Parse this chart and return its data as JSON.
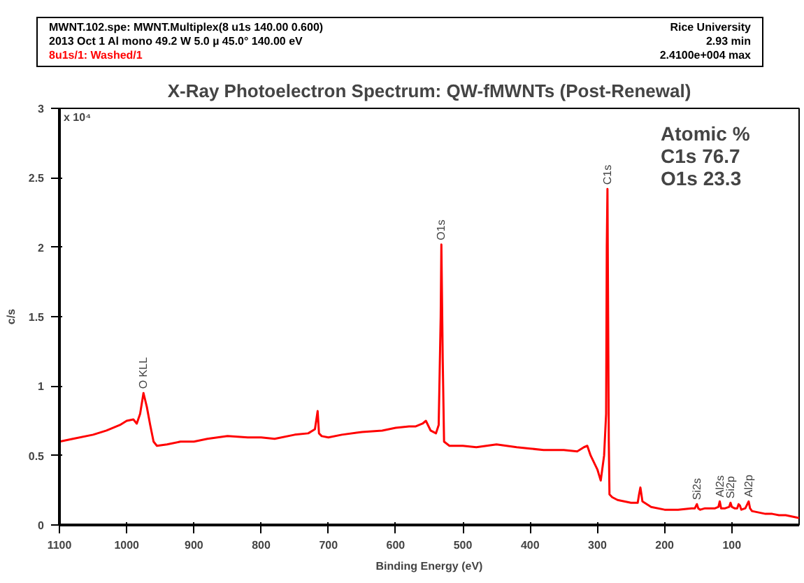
{
  "chart_data": {
    "type": "line",
    "title": "X-Ray Photoelectron Spectrum: QW-fMWNTs (Post-Renewal)",
    "xlabel": "Binding Energy (eV)",
    "ylabel": "c/s",
    "x": [
      1100,
      1080,
      1050,
      1030,
      1010,
      1000,
      990,
      985,
      980,
      975,
      970,
      965,
      960,
      955,
      940,
      920,
      900,
      880,
      850,
      820,
      800,
      780,
      750,
      730,
      720,
      716,
      714,
      710,
      700,
      680,
      650,
      620,
      600,
      580,
      570,
      560,
      555,
      548,
      540,
      536,
      533,
      532,
      530,
      528,
      520,
      500,
      480,
      450,
      420,
      400,
      380,
      350,
      330,
      320,
      315,
      310,
      300,
      295,
      290,
      287,
      286,
      285,
      284,
      283,
      282,
      278,
      270,
      260,
      250,
      240,
      238,
      236,
      233,
      220,
      200,
      180,
      160,
      155,
      152,
      150,
      147,
      140,
      125,
      120,
      118,
      116,
      110,
      104,
      102,
      100,
      96,
      92,
      90,
      88,
      86,
      80,
      76,
      75,
      73,
      70,
      60,
      50,
      40,
      30,
      20,
      10,
      0
    ],
    "series": [
      {
        "color": "#ff0000",
        "values": [
          0.6,
          0.62,
          0.65,
          0.68,
          0.72,
          0.75,
          0.76,
          0.73,
          0.8,
          0.95,
          0.85,
          0.72,
          0.6,
          0.57,
          0.58,
          0.6,
          0.6,
          0.62,
          0.64,
          0.63,
          0.63,
          0.62,
          0.65,
          0.66,
          0.69,
          0.82,
          0.66,
          0.64,
          0.63,
          0.65,
          0.67,
          0.68,
          0.7,
          0.71,
          0.71,
          0.73,
          0.75,
          0.68,
          0.66,
          0.72,
          1.5,
          2.02,
          1.2,
          0.6,
          0.57,
          0.57,
          0.56,
          0.58,
          0.56,
          0.55,
          0.54,
          0.54,
          0.53,
          0.56,
          0.57,
          0.5,
          0.4,
          0.32,
          0.5,
          0.8,
          2.0,
          2.42,
          1.5,
          0.6,
          0.22,
          0.2,
          0.18,
          0.17,
          0.16,
          0.16,
          0.22,
          0.27,
          0.17,
          0.13,
          0.11,
          0.11,
          0.12,
          0.12,
          0.15,
          0.12,
          0.11,
          0.12,
          0.12,
          0.13,
          0.17,
          0.12,
          0.12,
          0.13,
          0.16,
          0.13,
          0.12,
          0.12,
          0.15,
          0.14,
          0.11,
          0.12,
          0.16,
          0.17,
          0.12,
          0.1,
          0.09,
          0.08,
          0.08,
          0.07,
          0.07,
          0.06,
          0.05
        ]
      }
    ],
    "xlim": [
      1100,
      0
    ],
    "ylim": [
      0,
      3
    ],
    "xticks": [
      1100,
      1000,
      900,
      800,
      700,
      600,
      500,
      400,
      300,
      200,
      100
    ],
    "yticks": [
      0,
      0.5,
      1,
      1.5,
      2,
      2.5,
      3
    ],
    "grid": false,
    "marker": "none",
    "line_style": "solid",
    "annotations": [
      "MWNT.102.spe:  MWNT.Multiplex(8 u1s   140.00 0.600)",
      "2013 Oct  1  Al mono   49.2 W  5.0 µ  45.0°  140.00 eV",
      "8u1s/1: Washed/1",
      "Rice University",
      "2.93 min",
      "2.4100e+004 max",
      "x 10⁴",
      "Atomic %",
      "C1s  76.7",
      "O1s  23.3",
      {
        "text": "O KLL",
        "x": 975,
        "y": 0.95
      },
      {
        "text": "O1s",
        "x": 532,
        "y": 2.02
      },
      {
        "text": "C1s",
        "x": 285,
        "y": 2.42
      },
      {
        "text": "Si2s",
        "x": 152,
        "y": 0.15
      },
      {
        "text": "Al2s",
        "x": 118,
        "y": 0.17
      },
      {
        "text": "Si2p",
        "x": 102,
        "y": 0.16
      },
      {
        "text": "Al2p",
        "x": 75,
        "y": 0.17
      }
    ]
  }
}
